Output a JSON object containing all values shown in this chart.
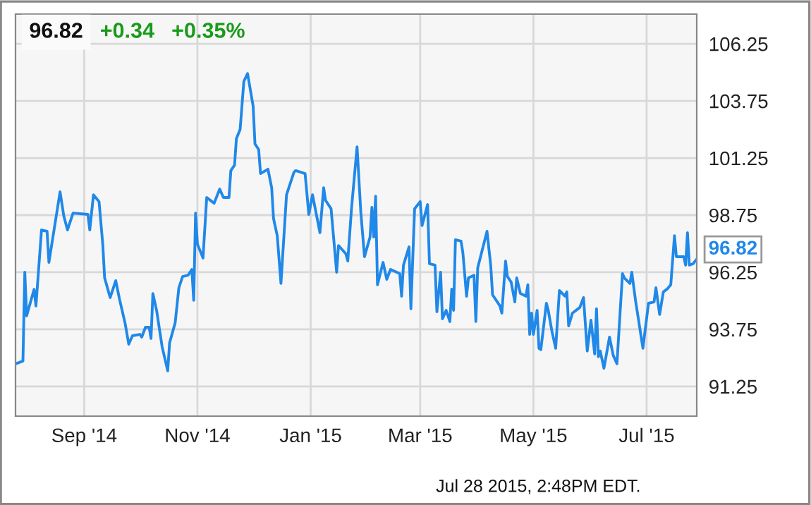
{
  "chart_data": {
    "type": "line",
    "title": "96.82",
    "annotations": [
      "+0.34",
      "+0.35%",
      "Jul 28 2015, 2:48PM EDT.",
      {
        "text": "96.82",
        "x": "2015-07-28",
        "y": 96.82
      }
    ],
    "series": [
      {
        "color": "#2088e8",
        "x": [
          "2014-07-26",
          "2014-07-30",
          "2014-07-31",
          "2014-08-01",
          "2014-08-05",
          "2014-08-06",
          "2014-08-09",
          "2014-08-12",
          "2014-08-13",
          "2014-08-19",
          "2014-08-21",
          "2014-08-23",
          "2014-08-26",
          "2014-09-03",
          "2014-09-04",
          "2014-09-06",
          "2014-09-09",
          "2014-09-11",
          "2014-09-12",
          "2014-09-15",
          "2014-09-18",
          "2014-09-20",
          "2014-09-23",
          "2014-09-25",
          "2014-09-27",
          "2014-10-01",
          "2014-10-02",
          "2014-10-04",
          "2014-10-06",
          "2014-10-07",
          "2014-10-08",
          "2014-10-10",
          "2014-10-13",
          "2014-10-16",
          "2014-10-17",
          "2014-10-20",
          "2014-10-22",
          "2014-10-24",
          "2014-10-27",
          "2014-10-29",
          "2014-10-30",
          "2014-10-31",
          "2014-11-01",
          "2014-11-04",
          "2014-11-06",
          "2014-11-10",
          "2014-11-13",
          "2014-11-15",
          "2014-11-18",
          "2014-11-19",
          "2014-11-21",
          "2014-11-22",
          "2014-11-24",
          "2014-11-26",
          "2014-11-28",
          "2014-12-01",
          "2014-12-02",
          "2014-12-04",
          "2014-12-05",
          "2014-12-09",
          "2014-12-11",
          "2014-12-12",
          "2014-12-14",
          "2014-12-16",
          "2014-12-19",
          "2014-12-23",
          "2014-12-24",
          "2014-12-29",
          "2014-12-31",
          "2015-01-02",
          "2015-01-06",
          "2015-01-08",
          "2015-01-09",
          "2015-01-12",
          "2015-01-15",
          "2015-01-16",
          "2015-01-20",
          "2015-01-21",
          "2015-01-23",
          "2015-01-26",
          "2015-01-28",
          "2015-01-30",
          "2015-02-02",
          "2015-02-03",
          "2015-02-04",
          "2015-02-05",
          "2015-02-06",
          "2015-02-09",
          "2015-02-11",
          "2015-02-13",
          "2015-02-18",
          "2015-02-19",
          "2015-02-20",
          "2015-02-23",
          "2015-02-24",
          "2015-02-26",
          "2015-03-01",
          "2015-03-02",
          "2015-03-05",
          "2015-03-06",
          "2015-03-09",
          "2015-03-10",
          "2015-03-12",
          "2015-03-13",
          "2015-03-15",
          "2015-03-17",
          "2015-03-18",
          "2015-03-19",
          "2015-03-20",
          "2015-03-23",
          "2015-03-24",
          "2015-03-26",
          "2015-03-27",
          "2015-03-30",
          "2015-03-31",
          "2015-04-01",
          "2015-04-06",
          "2015-04-08",
          "2015-04-09",
          "2015-04-13",
          "2015-04-14",
          "2015-04-16",
          "2015-04-17",
          "2015-04-19",
          "2015-04-21",
          "2015-04-22",
          "2015-04-24",
          "2015-04-27",
          "2015-04-28",
          "2015-04-29",
          "2015-04-30",
          "2015-05-01",
          "2015-05-03",
          "2015-05-04",
          "2015-05-05",
          "2015-05-08",
          "2015-05-09",
          "2015-05-11",
          "2015-05-13",
          "2015-05-15",
          "2015-05-18",
          "2015-05-19",
          "2015-05-20",
          "2015-05-22",
          "2015-05-26",
          "2015-05-28",
          "2015-05-30",
          "2015-06-01",
          "2015-06-03",
          "2015-06-04",
          "2015-06-05",
          "2015-06-06",
          "2015-06-08",
          "2015-06-11",
          "2015-06-13",
          "2015-06-15",
          "2015-06-18",
          "2015-06-19",
          "2015-06-22",
          "2015-06-23",
          "2015-06-25",
          "2015-06-29",
          "2015-07-02",
          "2015-07-05",
          "2015-07-06",
          "2015-07-08",
          "2015-07-10",
          "2015-07-12",
          "2015-07-14",
          "2015-07-16",
          "2015-07-17",
          "2015-07-21",
          "2015-07-22",
          "2015-07-23",
          "2015-07-24",
          "2015-07-26",
          "2015-07-28"
        ],
        "values": [
          92.24,
          92.36,
          96.25,
          94.34,
          95.5,
          94.77,
          98.1,
          98.04,
          96.68,
          99.77,
          98.72,
          98.1,
          98.84,
          98.78,
          98.1,
          99.64,
          99.34,
          97.48,
          96.0,
          95.14,
          95.88,
          95.08,
          94.03,
          93.1,
          93.47,
          93.53,
          93.41,
          93.84,
          93.84,
          93.35,
          95.32,
          94.58,
          92.98,
          91.93,
          93.16,
          94.03,
          95.57,
          96.06,
          96.12,
          96.37,
          95.02,
          98.84,
          97.48,
          96.87,
          99.52,
          99.27,
          99.89,
          99.52,
          99.52,
          100.7,
          100.94,
          102.1,
          102.5,
          104.6,
          104.95,
          103.53,
          101.87,
          101.62,
          100.57,
          100.76,
          99.95,
          98.6,
          97.85,
          95.76,
          99.64,
          100.63,
          100.7,
          100.57,
          98.78,
          99.64,
          97.98,
          99.95,
          99.4,
          99.03,
          96.25,
          97.42,
          97.05,
          96.74,
          99.03,
          101.74,
          98.9,
          96.93,
          97.79,
          99.09,
          97.79,
          99.58,
          95.7,
          96.68,
          95.94,
          96.37,
          96.19,
          95.2,
          96.56,
          97.36,
          94.65,
          99.03,
          99.34,
          98.29,
          99.21,
          96.62,
          96.56,
          94.52,
          96.25,
          94.21,
          94.58,
          94.09,
          95.51,
          94.58,
          97.67,
          97.61,
          97.11,
          95.2,
          96.0,
          96.12,
          94.09,
          96.44,
          98.04,
          96.56,
          95.26,
          94.77,
          94.46,
          96.74,
          96.06,
          95.82,
          94.95,
          96.0,
          95.32,
          95.2,
          95.7,
          93.53,
          94.46,
          93.53,
          94.58,
          92.92,
          92.86,
          94.89,
          94.58,
          93.66,
          92.92,
          95.45,
          95.2,
          95.39,
          93.9,
          94.46,
          94.71,
          95.14,
          92.8,
          94.15,
          92.67,
          94.65,
          92.55,
          92.8,
          92.05,
          93.41,
          92.61,
          92.24,
          96.19,
          96.0,
          95.76,
          96.25,
          95.02,
          92.92,
          94.89,
          94.95,
          95.57,
          94.4,
          95.39,
          95.51,
          95.7,
          97.85,
          96.93,
          96.93,
          96.56,
          97.98,
          96.56,
          96.62,
          96.82
        ]
      }
    ],
    "xlim": [
      "2014-07-26",
      "2015-07-28"
    ],
    "xticks": [
      {
        "value": "2014-09-01",
        "label": "Sep '14"
      },
      {
        "value": "2014-11-01",
        "label": "Nov '14"
      },
      {
        "value": "2015-01-01",
        "label": "Jan '15"
      },
      {
        "value": "2015-03-01",
        "label": "Mar '15"
      },
      {
        "value": "2015-05-01",
        "label": "May '15"
      },
      {
        "value": "2015-07-01",
        "label": "Jul '15"
      }
    ],
    "ylim": [
      89.95,
      107.55
    ],
    "yticks": [
      91.25,
      93.75,
      96.25,
      98.75,
      101.25,
      103.75,
      106.25
    ],
    "grid": true,
    "legend": false,
    "marker": "none",
    "line_style": "solid"
  }
}
